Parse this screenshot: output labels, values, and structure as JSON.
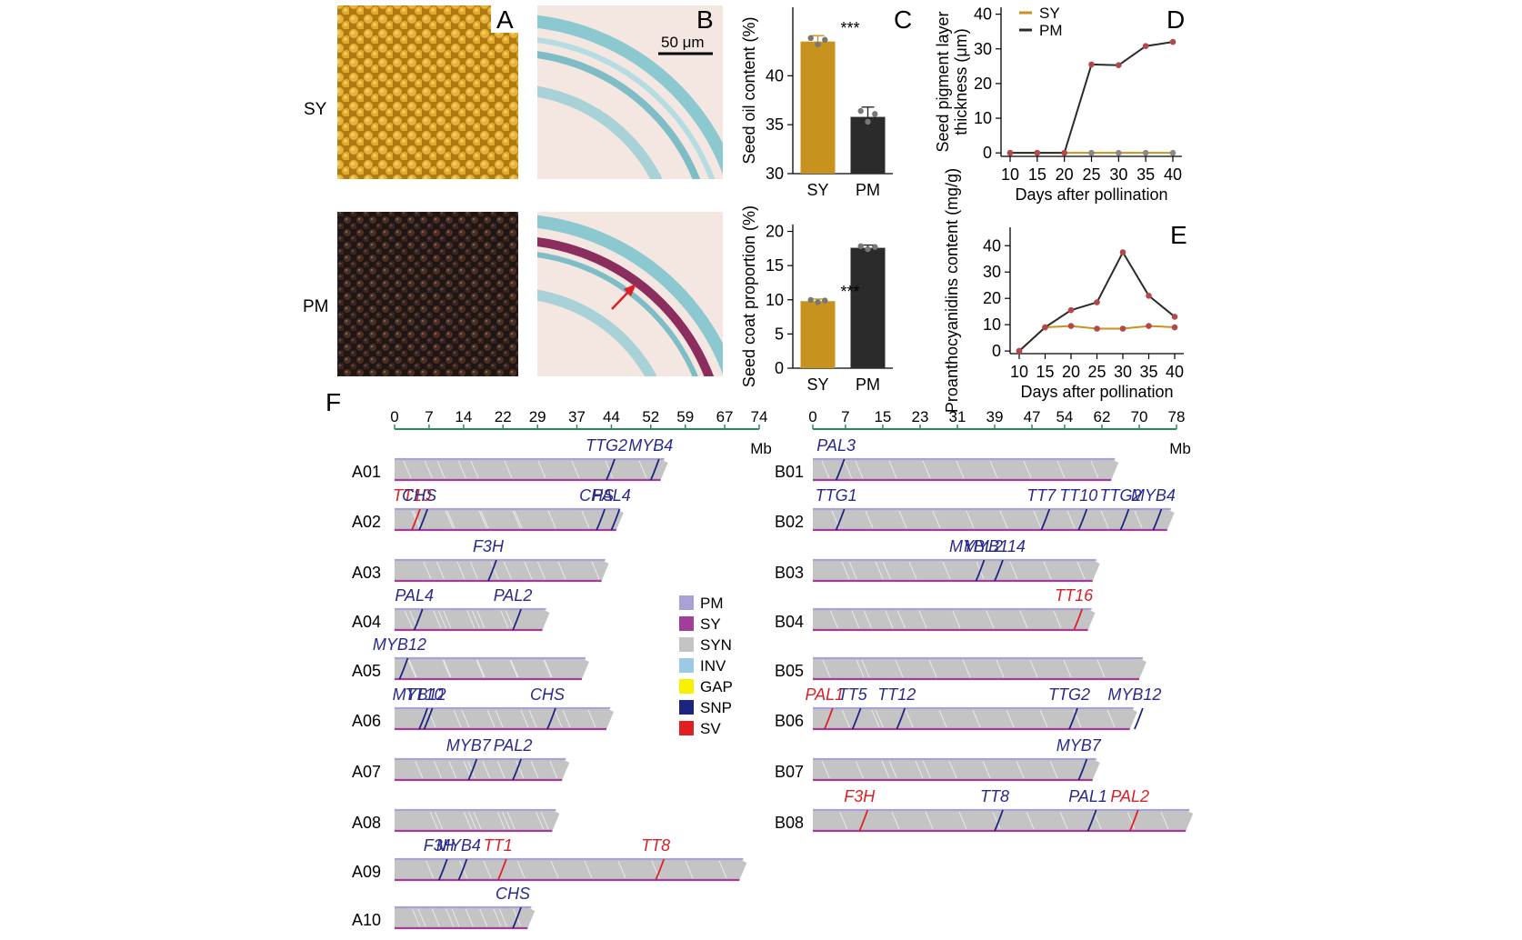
{
  "panel_letters": {
    "a": "A",
    "b": "B",
    "c": "C",
    "d": "D",
    "e": "E",
    "f": "F"
  },
  "rows": {
    "sy": "SY",
    "pm": "PM"
  },
  "scale_bar": "50 μm",
  "sig": "***",
  "colors": {
    "sy": "#C8921E",
    "pm": "#2B2B2B",
    "point": "#B5474C",
    "pm_track": "#A9A2D6",
    "sy_track": "#A23D9A",
    "syn": "#C4C4C4",
    "inv": "#9CC9E3",
    "gap": "#F5F100",
    "snp": "#1C2480",
    "sv": "#E01E24",
    "axis": "#2E8B57",
    "blue_lbl": "#2A2A8C",
    "red_lbl": "#D62127"
  },
  "chart_data": [
    {
      "id": "C-top",
      "type": "bar",
      "categories": [
        "SY",
        "PM"
      ],
      "values": [
        43.5,
        35.8
      ],
      "errors": [
        0.6,
        1.0
      ],
      "ylabel": "Seed oil content (%)",
      "ylim": [
        30,
        47
      ],
      "yticks": [
        30,
        35,
        40
      ],
      "sig": "***"
    },
    {
      "id": "C-bottom",
      "type": "bar",
      "categories": [
        "SY",
        "PM"
      ],
      "values": [
        9.8,
        17.6
      ],
      "errors": [
        0.3,
        0.4
      ],
      "ylabel": "Seed coat proportion (%)",
      "ylim": [
        0,
        21
      ],
      "yticks": [
        0,
        5,
        10,
        15,
        20
      ],
      "sig": "***"
    },
    {
      "id": "D",
      "type": "line",
      "x": [
        10,
        15,
        20,
        25,
        30,
        35,
        40
      ],
      "xlabel": "Days after pollination",
      "ylabel": "Seed pigment layer thickness (μm)",
      "ylim": [
        -1,
        42
      ],
      "yticks": [
        0,
        10,
        20,
        30,
        40
      ],
      "series": [
        {
          "name": "SY",
          "values": [
            0,
            0,
            0,
            0,
            0,
            0,
            0
          ]
        },
        {
          "name": "PM",
          "values": [
            0,
            0,
            0,
            25.5,
            25.3,
            30.8,
            32
          ]
        }
      ],
      "legend": "top-left"
    },
    {
      "id": "E",
      "type": "line",
      "x": [
        10,
        15,
        20,
        25,
        30,
        35,
        40
      ],
      "xlabel": "Days after pollination",
      "ylabel": "Proanthocyanidins content (mg/g)",
      "ylim": [
        -1,
        47
      ],
      "yticks": [
        0,
        10,
        20,
        30,
        40
      ],
      "series": [
        {
          "name": "SY",
          "values": [
            0,
            9,
            9.5,
            8.5,
            8.5,
            9.5,
            9
          ]
        },
        {
          "name": "PM",
          "values": [
            0,
            9,
            15.5,
            18.5,
            37.5,
            21,
            13
          ]
        }
      ]
    },
    {
      "id": "F-A",
      "type": "synteny",
      "axis_ticks": [
        0,
        7,
        14,
        22,
        29,
        37,
        44,
        52,
        59,
        67,
        74
      ],
      "axis_max": 74,
      "unit": "Mb",
      "chromosomes": [
        {
          "name": "A01",
          "len": 54,
          "genes": [
            {
              "n": "TTG2",
              "p": 43,
              "c": "b"
            },
            {
              "n": "MYB4",
              "p": 52,
              "c": "b"
            }
          ]
        },
        {
          "name": "A02",
          "len": 45,
          "genes": [
            {
              "n": "TT10",
              "p": 3.5,
              "c": "r"
            },
            {
              "n": "CHS",
              "p": 5,
              "c": "b"
            },
            {
              "n": "CHS",
              "p": 41,
              "c": "b"
            },
            {
              "n": "PAL4",
              "p": 44,
              "c": "b"
            }
          ]
        },
        {
          "name": "A03",
          "len": 42,
          "genes": [
            {
              "n": "F3H",
              "p": 19,
              "c": "b"
            }
          ]
        },
        {
          "name": "A04",
          "len": 30,
          "genes": [
            {
              "n": "PAL4",
              "p": 4,
              "c": "b"
            },
            {
              "n": "PAL2",
              "p": 24,
              "c": "b"
            }
          ]
        },
        {
          "name": "A05",
          "len": 38,
          "genes": [
            {
              "n": "MYB12",
              "p": 1,
              "c": "b"
            }
          ]
        },
        {
          "name": "A06",
          "len": 43,
          "genes": [
            {
              "n": "MYB12",
              "p": 5,
              "c": "b"
            },
            {
              "n": "TT10",
              "p": 6,
              "c": "b"
            },
            {
              "n": "CHS",
              "p": 31,
              "c": "b"
            }
          ]
        },
        {
          "name": "A07",
          "len": 34,
          "genes": [
            {
              "n": "MYB7",
              "p": 15,
              "c": "b"
            },
            {
              "n": "PAL2",
              "p": 24,
              "c": "b"
            }
          ]
        },
        {
          "name": "A08",
          "len": 32,
          "genes": []
        },
        {
          "name": "A09",
          "len": 70,
          "genes": [
            {
              "n": "F3H",
              "p": 9,
              "c": "b"
            },
            {
              "n": "MYB4",
              "p": 13,
              "c": "b"
            },
            {
              "n": "TT1",
              "p": 21,
              "c": "r"
            },
            {
              "n": "TT8",
              "p": 53,
              "c": "r"
            }
          ]
        },
        {
          "name": "A10",
          "len": 27,
          "genes": [
            {
              "n": "CHS",
              "p": 24,
              "c": "b"
            }
          ]
        }
      ]
    },
    {
      "id": "F-B",
      "type": "synteny",
      "axis_ticks": [
        0,
        7,
        15,
        23,
        31,
        39,
        47,
        54,
        62,
        70,
        78
      ],
      "axis_max": 78,
      "unit": "Mb",
      "chromosomes": [
        {
          "name": "B01",
          "len": 64,
          "genes": [
            {
              "n": "PAL3",
              "p": 5,
              "c": "b"
            }
          ]
        },
        {
          "name": "B02",
          "len": 76,
          "genes": [
            {
              "n": "TTG1",
              "p": 5,
              "c": "b"
            },
            {
              "n": "TT7",
              "p": 49,
              "c": "b"
            },
            {
              "n": "TT10",
              "p": 57,
              "c": "b"
            },
            {
              "n": "TTG2",
              "p": 66,
              "c": "b"
            },
            {
              "n": "MYB4",
              "p": 73,
              "c": "b"
            }
          ]
        },
        {
          "name": "B03",
          "len": 60,
          "genes": [
            {
              "n": "MYBL2",
              "p": 35,
              "c": "b"
            },
            {
              "n": "MYB114",
              "p": 39,
              "c": "b"
            }
          ]
        },
        {
          "name": "B04",
          "len": 59,
          "genes": [
            {
              "n": "TT16",
              "p": 56,
              "c": "r"
            }
          ]
        },
        {
          "name": "B05",
          "len": 70,
          "genes": []
        },
        {
          "name": "B06",
          "len": 68,
          "genes": [
            {
              "n": "PAL1",
              "p": 2.5,
              "c": "r"
            },
            {
              "n": "TT5",
              "p": 8.5,
              "c": "b"
            },
            {
              "n": "TT12",
              "p": 18,
              "c": "b"
            },
            {
              "n": "TTG2",
              "p": 55,
              "c": "b"
            },
            {
              "n": "MYB12",
              "p": 69,
              "c": "b"
            }
          ]
        },
        {
          "name": "B07",
          "len": 60,
          "genes": [
            {
              "n": "MYB7",
              "p": 57,
              "c": "b"
            }
          ]
        },
        {
          "name": "B08",
          "len": 80,
          "genes": [
            {
              "n": "F3H",
              "p": 10,
              "c": "r"
            },
            {
              "n": "TT8",
              "p": 39,
              "c": "b"
            },
            {
              "n": "PAL1",
              "p": 59,
              "c": "b"
            },
            {
              "n": "PAL2",
              "p": 68,
              "c": "r"
            }
          ]
        }
      ]
    }
  ],
  "legend_f": [
    {
      "label": "PM",
      "color": "#A9A2D6"
    },
    {
      "label": "SY",
      "color": "#A23D9A"
    },
    {
      "label": "SYN",
      "color": "#C4C4C4"
    },
    {
      "label": "INV",
      "color": "#9CC9E3"
    },
    {
      "label": "GAP",
      "color": "#F5F100"
    },
    {
      "label": "SNP",
      "color": "#1C2480"
    },
    {
      "label": "SV",
      "color": "#E01E24"
    }
  ]
}
